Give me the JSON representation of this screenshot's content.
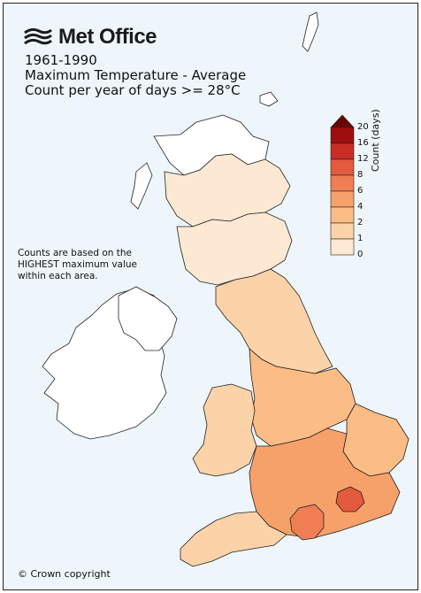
{
  "brand": {
    "name": "Met Office"
  },
  "title": {
    "line1": "1961-1990",
    "line2": "Maximum Temperature - Average",
    "line3": "Count per year of days >= 28°C"
  },
  "note": "Counts are based on the HIGHEST maximum value within each area.",
  "copyright": "© Crown copyright",
  "legend": {
    "label": "Count (days)",
    "ticks": [
      "0",
      "1",
      "2",
      "4",
      "6",
      "8",
      "12",
      "16",
      "20"
    ],
    "colors": [
      "#ffffff",
      "#fde9d3",
      "#fcd3a8",
      "#fbbc85",
      "#f7a16a",
      "#f07d54",
      "#e35a3c",
      "#c92d24",
      "#9e0d0d"
    ],
    "extend_color": "#6b0606"
  },
  "regions": [
    {
      "name": "northern-scotland",
      "count": 1
    },
    {
      "name": "highlands",
      "count": 0
    },
    {
      "name": "southern-scotland",
      "count": 1
    },
    {
      "name": "northern-ireland",
      "count": 0
    },
    {
      "name": "north-england",
      "count": 2
    },
    {
      "name": "midlands",
      "count": 3
    },
    {
      "name": "wales",
      "count": 2
    },
    {
      "name": "east-anglia",
      "count": 4
    },
    {
      "name": "south-england",
      "count": 4
    },
    {
      "name": "london",
      "count": 7
    },
    {
      "name": "sussex",
      "count": 9
    },
    {
      "name": "south-west",
      "count": 3
    },
    {
      "name": "ireland",
      "count": 0
    }
  ],
  "colors": {
    "background": "#eef6fb",
    "border": "#222222"
  }
}
